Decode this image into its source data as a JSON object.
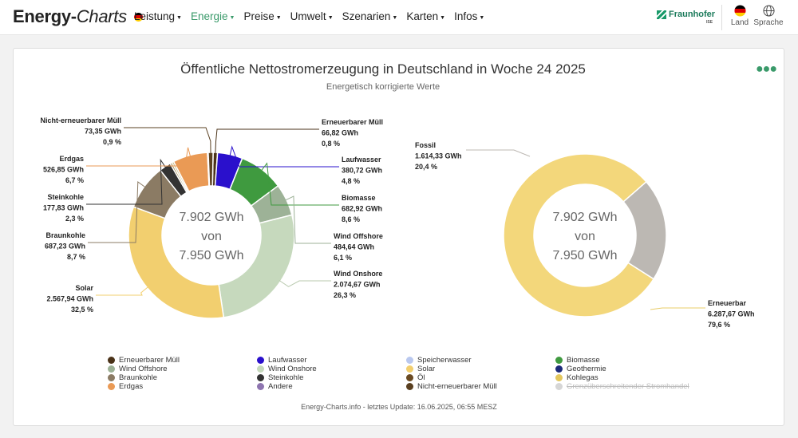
{
  "header": {
    "logo_main": "Energy-",
    "logo_italic": "Charts",
    "nav": [
      {
        "label": "Leistung",
        "active": false
      },
      {
        "label": "Energie",
        "active": true
      },
      {
        "label": "Preise",
        "active": false
      },
      {
        "label": "Umwelt",
        "active": false
      },
      {
        "label": "Szenarien",
        "active": false
      },
      {
        "label": "Karten",
        "active": false
      },
      {
        "label": "Infos",
        "active": false
      }
    ],
    "brand": "Fraunhofer",
    "brand_sub": "ISE",
    "land_label": "Land",
    "language_label": "Sprache"
  },
  "chart_data": [
    {
      "type": "pie",
      "title": "Öffentliche Nettostromerzeugung in Deutschland in Woche 24 2025",
      "subtitle": "Energetisch korrigierte Werte",
      "center_text": [
        "7.902 GWh",
        "von",
        "7.950 GWh"
      ],
      "slices": [
        {
          "name": "Erneuerbarer Müll",
          "value": 66.82,
          "value_label": "66,82 GWh",
          "pct": "0,8 %",
          "color": "#4a3218"
        },
        {
          "name": "Laufwasser",
          "value": 380.72,
          "value_label": "380,72 GWh",
          "pct": "4,8 %",
          "color": "#2a10cc"
        },
        {
          "name": "Biomasse",
          "value": 682.92,
          "value_label": "682,92 GWh",
          "pct": "8,6 %",
          "color": "#3f9a3f"
        },
        {
          "name": "Wind Offshore",
          "value": 484.64,
          "value_label": "484,64 GWh",
          "pct": "6,1 %",
          "color": "#9db297"
        },
        {
          "name": "Wind Onshore",
          "value": 2074.67,
          "value_label": "2.074,67 GWh",
          "pct": "26,3 %",
          "color": "#c6d9bd"
        },
        {
          "name": "Solar",
          "value": 2567.94,
          "value_label": "2.567,94 GWh",
          "pct": "32,5 %",
          "color": "#f2cf6f"
        },
        {
          "name": "Braunkohle",
          "value": 687.23,
          "value_label": "687,23 GWh",
          "pct": "8,7 %",
          "color": "#8b7b64"
        },
        {
          "name": "Steinkohle",
          "value": 177.83,
          "value_label": "177,83 GWh",
          "pct": "2,3 %",
          "color": "#333333"
        },
        {
          "name": "Öl",
          "value": 30,
          "color": "#9a8240"
        },
        {
          "name": "Kohlegas",
          "value": 30,
          "color": "#c9b77a"
        },
        {
          "name": "Erdgas",
          "value": 526.85,
          "value_label": "526,85 GWh",
          "pct": "6,7 %",
          "color": "#ea9a55"
        },
        {
          "name": "Andere",
          "value": 12,
          "color": "#8e75b0"
        },
        {
          "name": "Nicht-erneuerbarer Müll",
          "value": 73.35,
          "value_label": "73,35 GWh",
          "pct": "0,9 %",
          "color": "#5a4020"
        }
      ]
    },
    {
      "type": "pie",
      "center_text": [
        "7.902 GWh",
        "von",
        "7.950 GWh"
      ],
      "slices": [
        {
          "name": "Erneuerbar",
          "value": 6287.67,
          "value_label": "6.287,67 GWh",
          "pct": "79,6 %",
          "color": "#f3d77b"
        },
        {
          "name": "Fossil",
          "value": 1614.33,
          "value_label": "1.614,33 GWh",
          "pct": "20,4 %",
          "color": "#bcb8b3"
        }
      ]
    }
  ],
  "legend": [
    {
      "name": "Erneuerbarer Müll",
      "color": "#4a3218",
      "disabled": false
    },
    {
      "name": "Laufwasser",
      "color": "#2a10cc",
      "disabled": false
    },
    {
      "name": "Speicherwasser",
      "color": "#b9c8ef",
      "disabled": false
    },
    {
      "name": "Biomasse",
      "color": "#3f9a3f",
      "disabled": false
    },
    {
      "name": "Wind Offshore",
      "color": "#9db297",
      "disabled": false
    },
    {
      "name": "Wind Onshore",
      "color": "#c6d9bd",
      "disabled": false
    },
    {
      "name": "Solar",
      "color": "#f2cf6f",
      "disabled": false
    },
    {
      "name": "Geothermie",
      "color": "#1c2a7a",
      "disabled": false
    },
    {
      "name": "Braunkohle",
      "color": "#8b7b64",
      "disabled": false
    },
    {
      "name": "Steinkohle",
      "color": "#333333",
      "disabled": false
    },
    {
      "name": "Öl",
      "color": "#6a4a22",
      "disabled": false
    },
    {
      "name": "Kohlegas",
      "color": "#e3c75e",
      "disabled": false
    },
    {
      "name": "Erdgas",
      "color": "#ea9a55",
      "disabled": false
    },
    {
      "name": "Andere",
      "color": "#8e75b0",
      "disabled": false
    },
    {
      "name": "Nicht-erneuerbarer Müll",
      "color": "#5a4020",
      "disabled": false
    },
    {
      "name": "Grenzüberschreitender Stromhandel",
      "color": "#d6d6d6",
      "disabled": true
    }
  ],
  "footer": "Energy-Charts.info - letztes Update: 16.06.2025, 06:55 MESZ",
  "menu_icon": "more-dots-icon"
}
